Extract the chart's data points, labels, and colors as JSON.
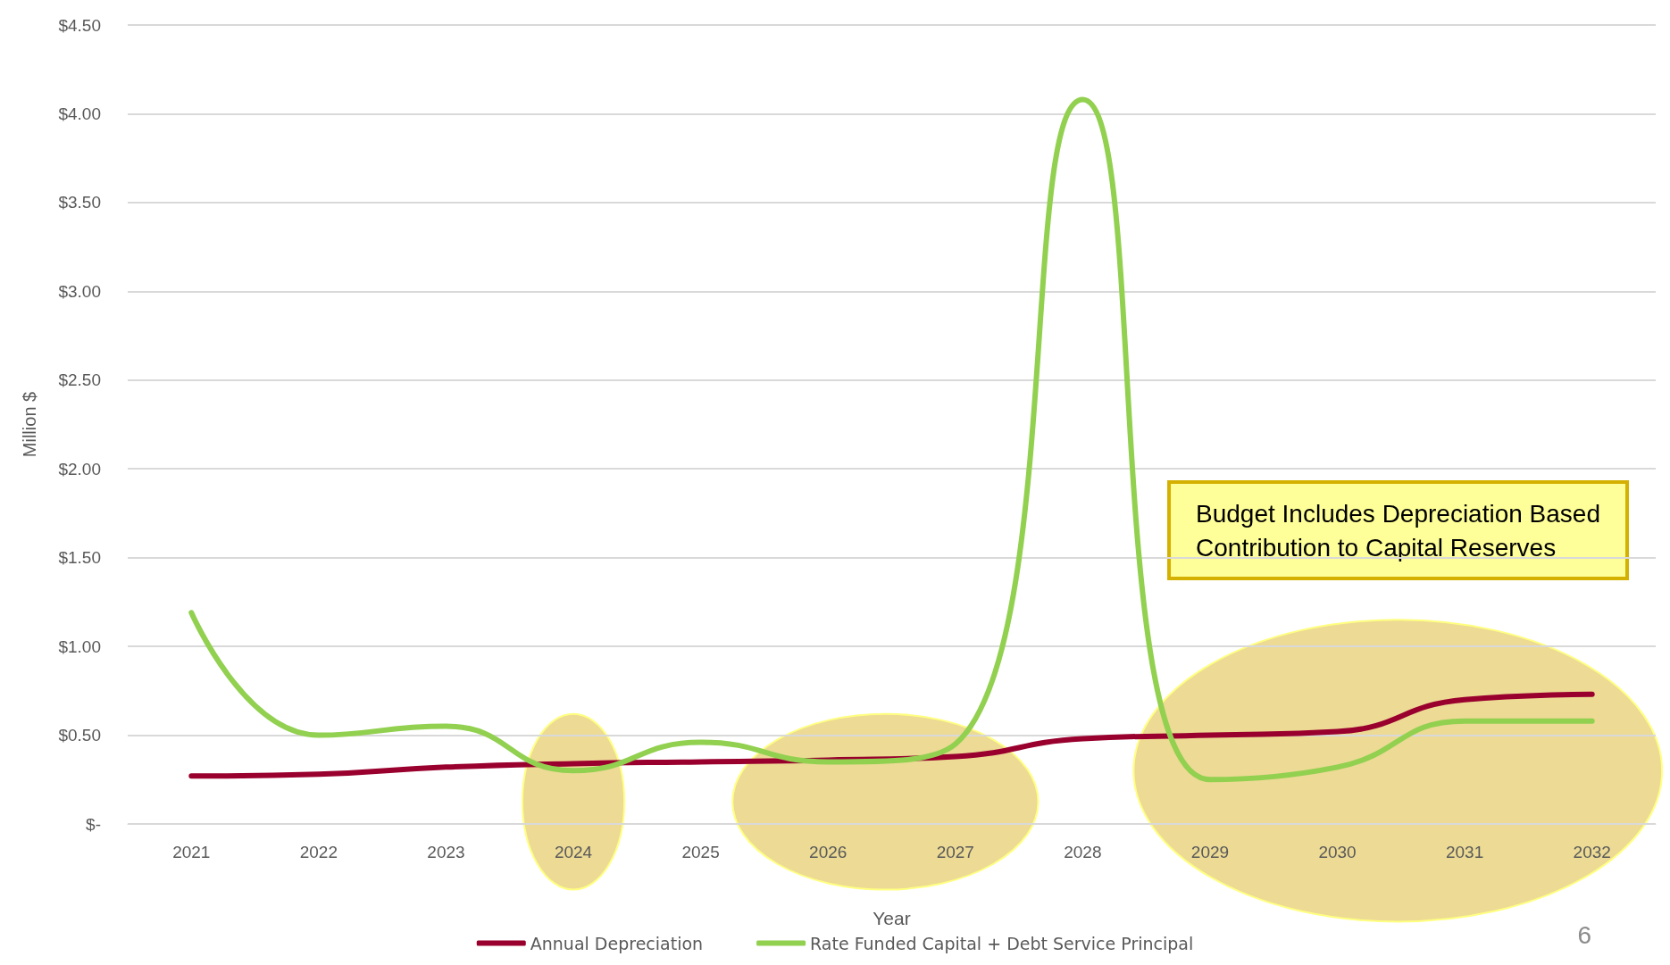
{
  "chart_data": {
    "type": "line",
    "xlabel": "Year",
    "ylabel": "Million $",
    "categories": [
      "2021",
      "2022",
      "2023",
      "2024",
      "2025",
      "2026",
      "2027",
      "2028",
      "2029",
      "2030",
      "2031",
      "2032"
    ],
    "series": [
      {
        "name": "Annual Depreciation",
        "color": "#99002e",
        "values": [
          0.27,
          0.28,
          0.32,
          0.34,
          0.35,
          0.36,
          0.38,
          0.48,
          0.5,
          0.52,
          0.7,
          0.73
        ]
      },
      {
        "name": "Rate Funded Capital + Debt Service Principal",
        "color": "#92d050",
        "values": [
          1.19,
          0.5,
          0.55,
          0.3,
          0.46,
          0.35,
          0.45,
          4.08,
          0.25,
          0.32,
          0.58,
          0.58
        ]
      }
    ],
    "ylim": [
      0,
      4.5
    ],
    "yticks": [
      {
        "value": 0,
        "label": "$-"
      },
      {
        "value": 0.5,
        "label": "$0.50"
      },
      {
        "value": 1,
        "label": "$1.00"
      },
      {
        "value": 1.5,
        "label": "$1.50"
      },
      {
        "value": 2,
        "label": "$2.00"
      },
      {
        "value": 2.5,
        "label": "$2.50"
      },
      {
        "value": 3,
        "label": "$3.00"
      },
      {
        "value": 3.5,
        "label": "$3.50"
      },
      {
        "value": 4,
        "label": "$4.00"
      },
      {
        "value": 4.5,
        "label": "$4.50"
      }
    ],
    "grid": "y",
    "legend": "bottom",
    "marker": "none",
    "line_style": "solid",
    "annotations": [
      "Budget Includes Depreciation Based\nContribution to Capital Reserves",
      "6"
    ]
  }
}
